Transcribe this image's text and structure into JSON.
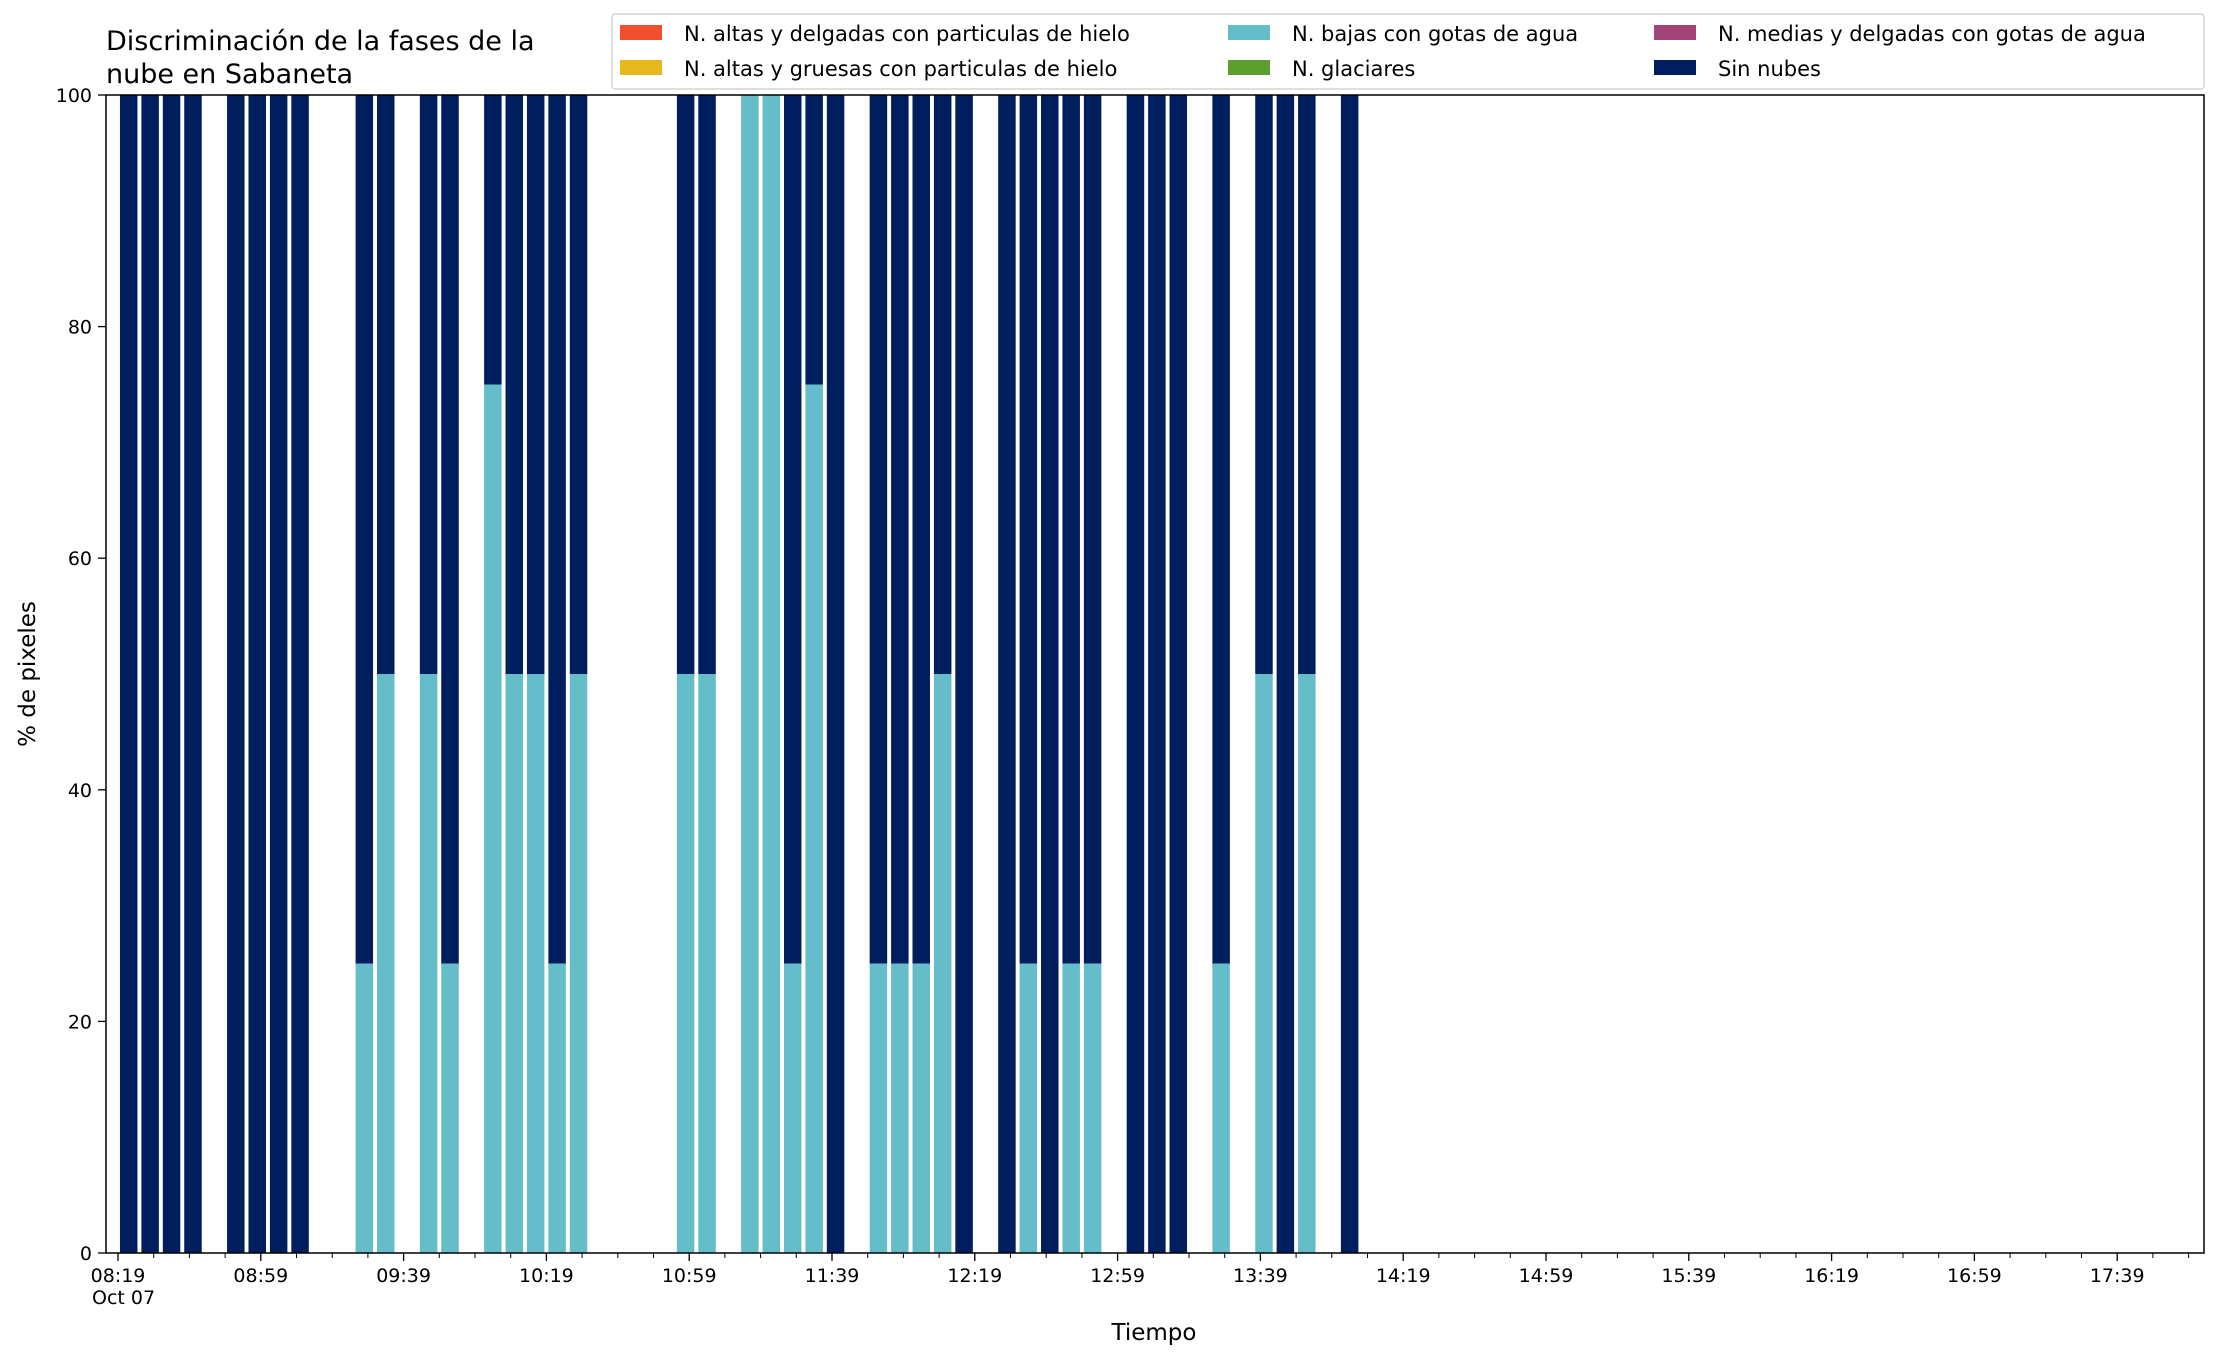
{
  "chart_data": {
    "type": "bar",
    "stacked": true,
    "title_lines": [
      "Discriminación de la fases de la",
      "nube en Sabaneta"
    ],
    "xlabel": "Tiempo",
    "ylabel": "% de pixeles",
    "ylim": [
      0,
      100
    ],
    "y_ticks": [
      "0",
      "20",
      "40",
      "60",
      "80",
      "100"
    ],
    "x_time_range": [
      "08:19",
      "18:09"
    ],
    "x_date_label": "Oct 07",
    "x_tick_labels": [
      "08:19",
      "08:59",
      "09:39",
      "10:19",
      "10:59",
      "11:39",
      "12:19",
      "12:59",
      "13:39",
      "14:19",
      "14:59",
      "15:39",
      "16:19",
      "16:59",
      "17:39"
    ],
    "x_minor_tick_times": [
      "08:29",
      "08:39",
      "08:49",
      "09:09",
      "09:19",
      "09:29",
      "09:49",
      "09:59",
      "10:09",
      "10:29",
      "10:39",
      "10:49",
      "11:09",
      "11:19",
      "11:29",
      "11:49",
      "11:59",
      "12:09",
      "12:29",
      "12:39",
      "12:49",
      "13:09",
      "13:19",
      "13:29",
      "13:49",
      "13:59",
      "14:09",
      "14:29",
      "14:39",
      "14:49",
      "15:09",
      "15:19",
      "15:29",
      "15:49",
      "15:59",
      "16:09",
      "16:29",
      "16:39",
      "16:49",
      "17:09",
      "17:19",
      "17:29",
      "17:49",
      "17:59"
    ],
    "grid": false,
    "legend_position": "top-right",
    "legend_columns": 3,
    "series": [
      {
        "name": "N. altas y delgadas con particulas de hielo",
        "color": "#f0502d"
      },
      {
        "name": "N. altas y gruesas con particulas de hielo",
        "color": "#e6b81e"
      },
      {
        "name": "N. bajas con gotas de agua",
        "color": "#66bdca"
      },
      {
        "name": "N. glaciares",
        "color": "#5d9e2e"
      },
      {
        "name": "N. medias y delgadas con gotas de agua",
        "color": "#a24478"
      },
      {
        "name": "Sin nubes",
        "color": "#001e5e"
      }
    ],
    "bars": [
      {
        "time": "08:22",
        "N. bajas con gotas de agua": 0,
        "Sin nubes": 100
      },
      {
        "time": "08:28",
        "N. bajas con gotas de agua": 0,
        "Sin nubes": 100
      },
      {
        "time": "08:34",
        "N. bajas con gotas de agua": 0,
        "Sin nubes": 100
      },
      {
        "time": "08:40",
        "N. bajas con gotas de agua": 0,
        "Sin nubes": 100
      },
      {
        "time": "08:52",
        "N. bajas con gotas de agua": 0,
        "Sin nubes": 100
      },
      {
        "time": "08:58",
        "N. bajas con gotas de agua": 0,
        "Sin nubes": 100
      },
      {
        "time": "09:04",
        "N. bajas con gotas de agua": 0,
        "Sin nubes": 100
      },
      {
        "time": "09:10",
        "N. bajas con gotas de agua": 0,
        "Sin nubes": 100
      },
      {
        "time": "09:28",
        "N. bajas con gotas de agua": 25,
        "Sin nubes": 75
      },
      {
        "time": "09:34",
        "N. bajas con gotas de agua": 50,
        "Sin nubes": 50
      },
      {
        "time": "09:46",
        "N. bajas con gotas de agua": 50,
        "Sin nubes": 50
      },
      {
        "time": "09:52",
        "N. bajas con gotas de agua": 25,
        "Sin nubes": 75
      },
      {
        "time": "10:04",
        "N. bajas con gotas de agua": 75,
        "Sin nubes": 25
      },
      {
        "time": "10:10",
        "N. bajas con gotas de agua": 50,
        "Sin nubes": 50
      },
      {
        "time": "10:16",
        "N. bajas con gotas de agua": 50,
        "Sin nubes": 50
      },
      {
        "time": "10:22",
        "N. bajas con gotas de agua": 25,
        "Sin nubes": 75
      },
      {
        "time": "10:28",
        "N. bajas con gotas de agua": 50,
        "Sin nubes": 50
      },
      {
        "time": "10:58",
        "N. bajas con gotas de agua": 50,
        "Sin nubes": 50
      },
      {
        "time": "11:04",
        "N. bajas con gotas de agua": 50,
        "Sin nubes": 50
      },
      {
        "time": "11:16",
        "N. bajas con gotas de agua": 100,
        "Sin nubes": 0
      },
      {
        "time": "11:22",
        "N. bajas con gotas de agua": 100,
        "Sin nubes": 0
      },
      {
        "time": "11:28",
        "N. bajas con gotas de agua": 25,
        "Sin nubes": 75
      },
      {
        "time": "11:34",
        "N. bajas con gotas de agua": 75,
        "Sin nubes": 25
      },
      {
        "time": "11:40",
        "N. bajas con gotas de agua": 0,
        "Sin nubes": 100
      },
      {
        "time": "11:52",
        "N. bajas con gotas de agua": 25,
        "Sin nubes": 75
      },
      {
        "time": "11:58",
        "N. bajas con gotas de agua": 25,
        "Sin nubes": 75
      },
      {
        "time": "12:04",
        "N. bajas con gotas de agua": 25,
        "Sin nubes": 75
      },
      {
        "time": "12:10",
        "N. bajas con gotas de agua": 50,
        "Sin nubes": 50
      },
      {
        "time": "12:16",
        "N. bajas con gotas de agua": 0,
        "Sin nubes": 100
      },
      {
        "time": "12:28",
        "N. bajas con gotas de agua": 0,
        "Sin nubes": 100
      },
      {
        "time": "12:34",
        "N. bajas con gotas de agua": 25,
        "Sin nubes": 75
      },
      {
        "time": "12:40",
        "N. bajas con gotas de agua": 0,
        "Sin nubes": 100
      },
      {
        "time": "12:46",
        "N. bajas con gotas de agua": 25,
        "Sin nubes": 75
      },
      {
        "time": "12:52",
        "N. bajas con gotas de agua": 25,
        "Sin nubes": 75
      },
      {
        "time": "13:04",
        "N. bajas con gotas de agua": 0,
        "Sin nubes": 100
      },
      {
        "time": "13:10",
        "N. bajas con gotas de agua": 0,
        "Sin nubes": 100
      },
      {
        "time": "13:16",
        "N. bajas con gotas de agua": 0,
        "Sin nubes": 100
      },
      {
        "time": "13:28",
        "N. bajas con gotas de agua": 25,
        "Sin nubes": 75
      },
      {
        "time": "13:40",
        "N. bajas con gotas de agua": 50,
        "Sin nubes": 50
      },
      {
        "time": "13:46",
        "N. bajas con gotas de agua": 0,
        "Sin nubes": 100
      },
      {
        "time": "13:52",
        "N. bajas con gotas de agua": 50,
        "Sin nubes": 50
      },
      {
        "time": "14:04",
        "N. bajas con gotas de agua": 0,
        "Sin nubes": 100
      }
    ]
  }
}
